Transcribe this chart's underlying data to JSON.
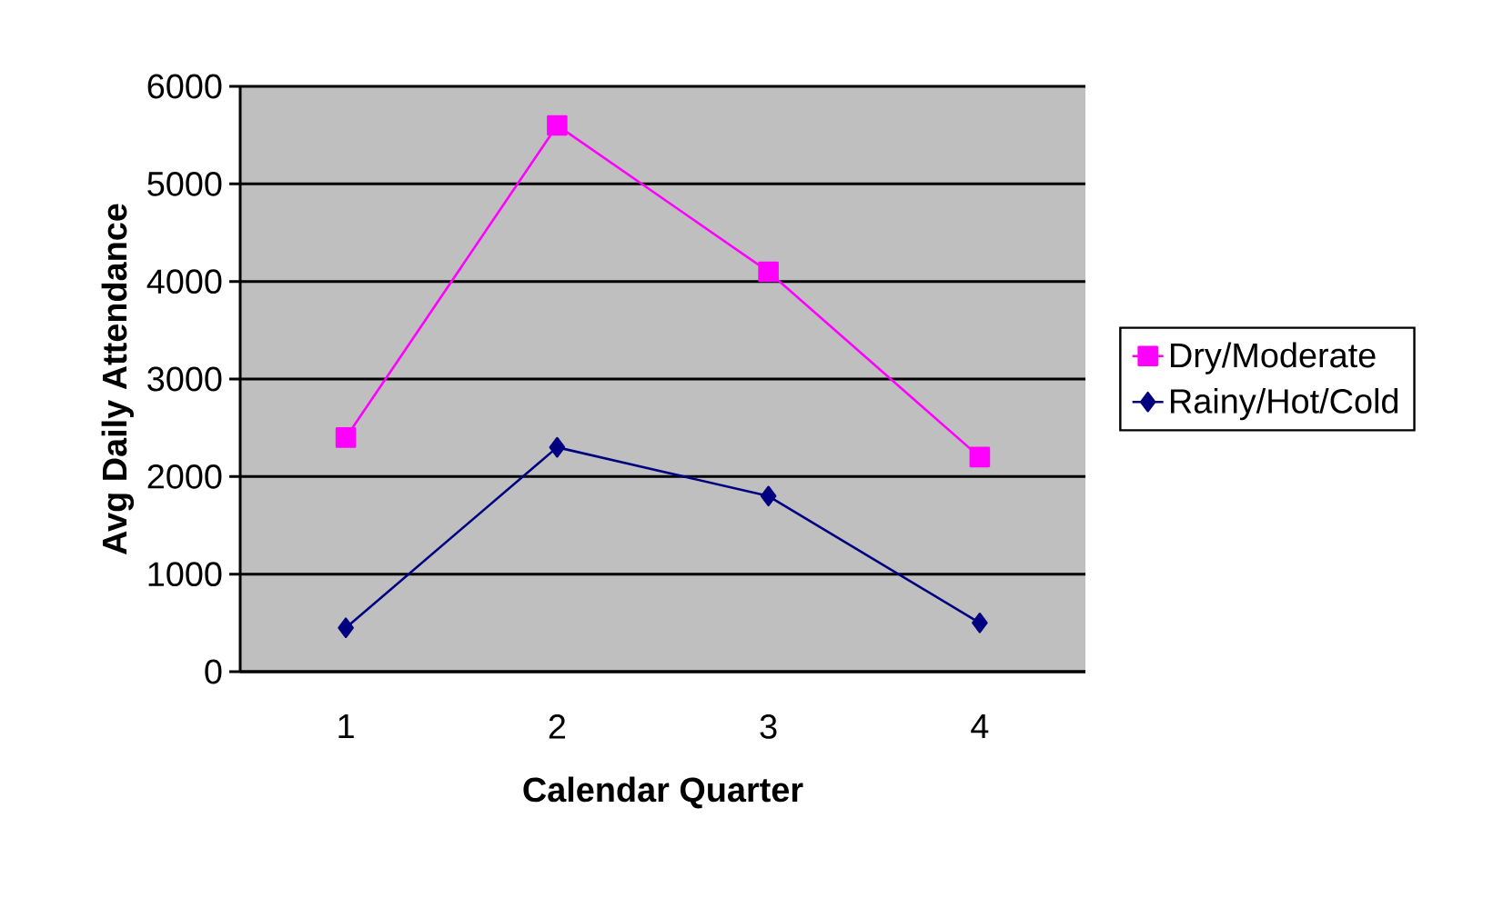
{
  "chart_data": {
    "type": "line",
    "xlabel": "Calendar Quarter",
    "ylabel": "Avg Daily Attendance",
    "categories": [
      "1",
      "2",
      "3",
      "4"
    ],
    "series": [
      {
        "name": "Dry/Moderate",
        "color": "#ff00ff",
        "marker": "square",
        "values": [
          2400,
          5600,
          4100,
          2200
        ]
      },
      {
        "name": "Rainy/Hot/Cold",
        "color": "#000080",
        "marker": "diamond",
        "values": [
          450,
          2300,
          1800,
          500
        ]
      }
    ],
    "ylim": [
      0,
      6000
    ],
    "yticks": [
      0,
      1000,
      2000,
      3000,
      4000,
      5000,
      6000
    ],
    "grid": "y",
    "legend": "right",
    "line_style": "solid"
  }
}
